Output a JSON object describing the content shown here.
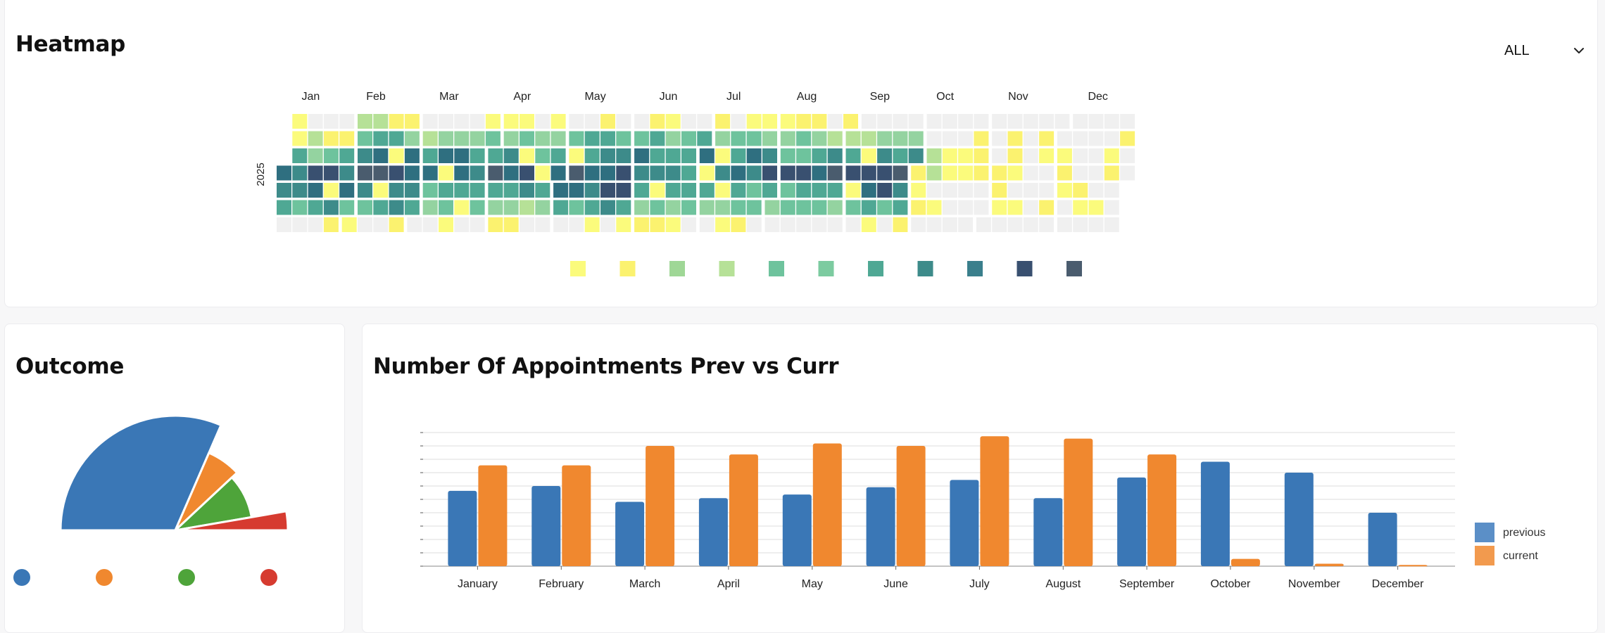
{
  "heatmap": {
    "title": "Heatmap",
    "filter_value": "ALL",
    "year_label": "2025",
    "months": [
      "Jan",
      "Feb",
      "Mar",
      "Apr",
      "May",
      "Jun",
      "Jul",
      "Aug",
      "Sep",
      "Oct",
      "Nov",
      "Dec"
    ],
    "palette": [
      "#f0f0f0",
      "#fbfb7c",
      "#fbf26f",
      "#b6e197",
      "#94d3a0",
      "#6ec39d",
      "#4fa894",
      "#3d8b8a",
      "#2f6f80",
      "#395070",
      "#4a5c6e"
    ],
    "legend_colors": [
      "#fbfb7c",
      "#fbf26f",
      "#9fd796",
      "#b6e197",
      "#6ec39d",
      "#7ccba0",
      "#4fa894",
      "#3d8b8a",
      "#3a7f8c",
      "#395070",
      "#4a5c6e"
    ],
    "month_levels": [
      [
        1,
        2,
        5,
        8,
        8,
        6,
        1
      ],
      [
        2,
        5,
        7,
        9,
        7,
        6,
        1
      ],
      [
        1,
        4,
        7,
        7,
        6,
        5,
        1
      ],
      [
        1,
        4,
        6,
        9,
        6,
        4,
        1
      ],
      [
        1,
        5,
        7,
        9,
        8,
        6,
        1
      ],
      [
        1,
        5,
        7,
        7,
        6,
        5,
        1
      ],
      [
        1,
        5,
        7,
        8,
        6,
        5,
        1
      ],
      [
        1,
        4,
        6,
        9,
        6,
        5,
        1
      ],
      [
        1,
        4,
        7,
        9,
        8,
        6,
        1
      ],
      [
        0,
        1,
        2,
        2,
        1,
        1,
        0
      ],
      [
        0,
        1,
        1,
        1,
        1,
        1,
        0
      ],
      [
        0,
        1,
        1,
        1,
        1,
        1,
        0
      ]
    ]
  },
  "outcome": {
    "title": "Outcome",
    "slices": [
      {
        "value": 58,
        "color": "#3a77b6"
      },
      {
        "value": 12,
        "color": "#f0882f"
      },
      {
        "value": 17,
        "color": "#4ea43a"
      },
      {
        "value": 5,
        "color": "#d63b30"
      }
    ]
  },
  "appointments": {
    "title": "Number Of Appointments Prev vs Curr",
    "chart_data": {
      "type": "bar",
      "categories": [
        "January",
        "February",
        "March",
        "April",
        "May",
        "June",
        "July",
        "August",
        "September",
        "October",
        "November",
        "December"
      ],
      "series": [
        {
          "name": "previous",
          "color": "#3a77b6",
          "values": [
            62,
            66,
            53,
            56,
            59,
            65,
            71,
            56,
            73,
            86,
            77,
            44
          ]
        },
        {
          "name": "current",
          "color": "#f0882f",
          "values": [
            83,
            83,
            99,
            92,
            101,
            99,
            107,
            105,
            92,
            6,
            2,
            1
          ]
        }
      ],
      "ylim": [
        0,
        110
      ],
      "grid": true,
      "legend_position": "right",
      "legend_colors": [
        "#5b8fc7",
        "#f29a4e"
      ]
    }
  }
}
